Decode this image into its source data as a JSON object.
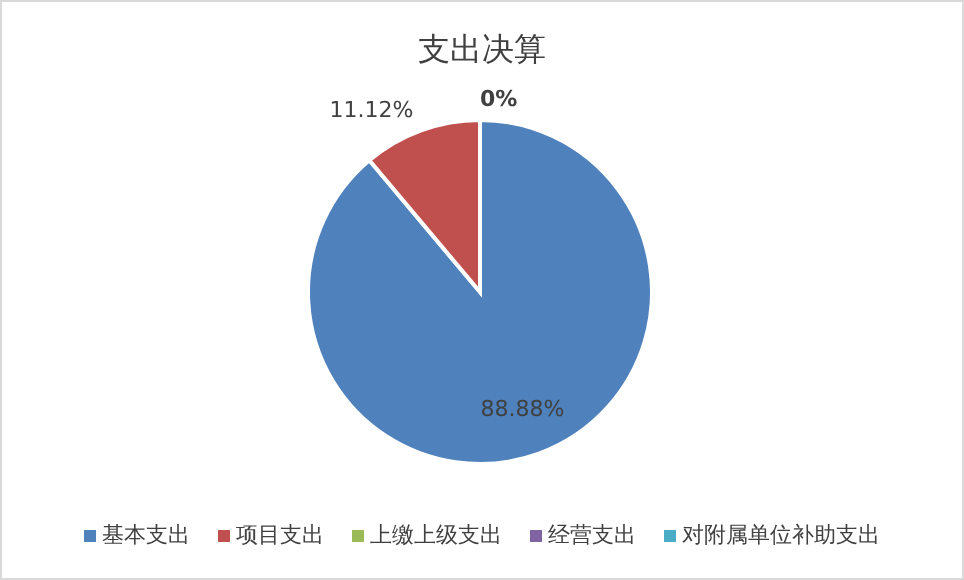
{
  "chart_data": {
    "type": "pie",
    "title": "支出决算",
    "categories": [
      "基本支出",
      "项目支出",
      "上缴上级支出",
      "经营支出",
      "对附属单位补助支出"
    ],
    "values": [
      88.88,
      11.12,
      0,
      0,
      0
    ],
    "value_labels": [
      "88.88%",
      "11.12%",
      "0%",
      null,
      null
    ],
    "colors": [
      "#4f81bd",
      "#c0504d",
      "#9bbb59",
      "#8064a2",
      "#4bacc6"
    ],
    "legend": "bottom"
  }
}
